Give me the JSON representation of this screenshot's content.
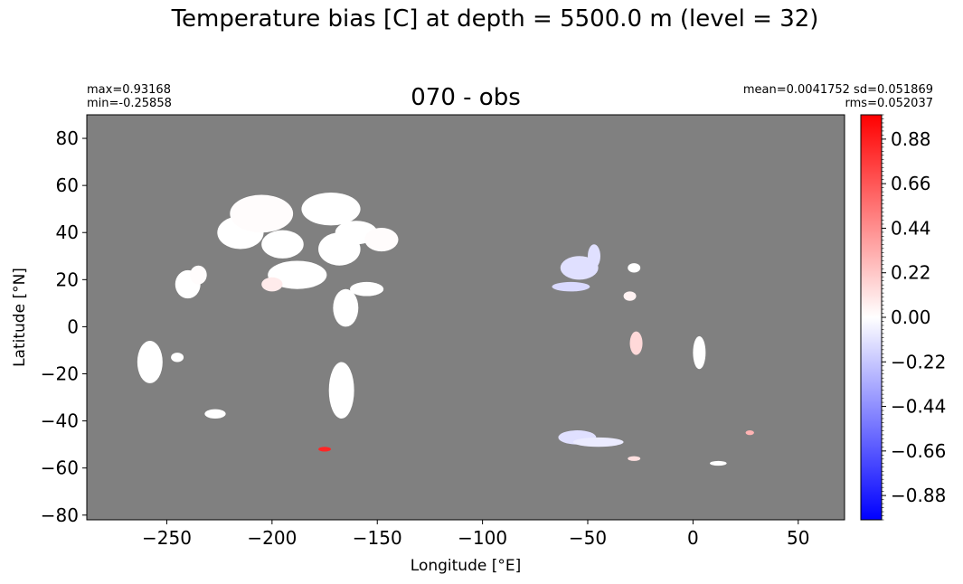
{
  "chart_data": {
    "type": "heatmap",
    "suptitle": "Temperature bias [C] at depth = 5500.0 m (level = 32)",
    "title": "070 - obs",
    "stats_left": [
      "max=0.93168",
      "min=-0.25858"
    ],
    "stats_right": [
      "mean=0.0041752 sd=0.051869",
      "rms=0.052037"
    ],
    "xlabel": "Longitude [°E]",
    "ylabel": "Latitude [°N]",
    "xlim": [
      -288,
      72
    ],
    "ylim": [
      -82,
      90
    ],
    "xticks": [
      -250,
      -200,
      -150,
      -100,
      -50,
      0,
      50
    ],
    "xtick_labels": [
      "−250",
      "−200",
      "−150",
      "−100",
      "−50",
      "0",
      "50"
    ],
    "yticks": [
      -80,
      -60,
      -40,
      -20,
      0,
      20,
      40,
      60,
      80
    ],
    "ytick_labels": [
      "−80",
      "−60",
      "−40",
      "−20",
      "0",
      "20",
      "40",
      "60",
      "80"
    ],
    "background_color": "#808080",
    "colorbar": {
      "vmin": -1.0,
      "vmax": 1.0,
      "colormap": "bwr",
      "ticks": [
        0.88,
        0.66,
        0.44,
        0.22,
        0.0,
        -0.22,
        -0.44,
        -0.66,
        -0.88
      ],
      "tick_labels": [
        "0.88",
        "0.66",
        "0.44",
        "0.22",
        "0.00",
        "−0.22",
        "−0.44",
        "−0.66",
        "−0.88"
      ]
    },
    "regions": [
      {
        "lon": -240,
        "lat": 18,
        "rx": 6,
        "ry": 6,
        "value": 0.0
      },
      {
        "lon": -235,
        "lat": 22,
        "rx": 4,
        "ry": 4,
        "value": 0.01
      },
      {
        "lon": -215,
        "lat": 40,
        "rx": 11,
        "ry": 7,
        "value": 0.0
      },
      {
        "lon": -205,
        "lat": 48,
        "rx": 15,
        "ry": 8,
        "value": 0.01
      },
      {
        "lon": -195,
        "lat": 35,
        "rx": 10,
        "ry": 6,
        "value": 0.0
      },
      {
        "lon": -188,
        "lat": 22,
        "rx": 14,
        "ry": 6,
        "value": 0.0
      },
      {
        "lon": -200,
        "lat": 18,
        "rx": 5,
        "ry": 3,
        "value": 0.08
      },
      {
        "lon": -172,
        "lat": 50,
        "rx": 14,
        "ry": 7,
        "value": 0.0
      },
      {
        "lon": -168,
        "lat": 33,
        "rx": 10,
        "ry": 7,
        "value": 0.0
      },
      {
        "lon": -160,
        "lat": 40,
        "rx": 10,
        "ry": 5,
        "value": 0.0
      },
      {
        "lon": -148,
        "lat": 37,
        "rx": 8,
        "ry": 5,
        "value": 0.01
      },
      {
        "lon": -165,
        "lat": 8,
        "rx": 6,
        "ry": 8,
        "value": 0.0
      },
      {
        "lon": -155,
        "lat": 16,
        "rx": 8,
        "ry": 3,
        "value": 0.0
      },
      {
        "lon": -258,
        "lat": -15,
        "rx": 6,
        "ry": 9,
        "value": 0.0
      },
      {
        "lon": -245,
        "lat": -13,
        "rx": 3,
        "ry": 2,
        "value": 0.0
      },
      {
        "lon": -167,
        "lat": -27,
        "rx": 6,
        "ry": 12,
        "value": 0.0
      },
      {
        "lon": -227,
        "lat": -37,
        "rx": 5,
        "ry": 2,
        "value": 0.0
      },
      {
        "lon": -175,
        "lat": -52,
        "rx": 3,
        "ry": 1,
        "value": 0.85
      },
      {
        "lon": -54,
        "lat": 25,
        "rx": 9,
        "ry": 5,
        "value": -0.12
      },
      {
        "lon": -47,
        "lat": 30,
        "rx": 3,
        "ry": 5,
        "value": -0.12
      },
      {
        "lon": -58,
        "lat": 17,
        "rx": 9,
        "ry": 2,
        "value": -0.15
      },
      {
        "lon": -28,
        "lat": 25,
        "rx": 3,
        "ry": 2,
        "value": 0.0
      },
      {
        "lon": -30,
        "lat": 13,
        "rx": 3,
        "ry": 2,
        "value": 0.05
      },
      {
        "lon": -27,
        "lat": -7,
        "rx": 3,
        "ry": 5,
        "value": 0.15
      },
      {
        "lon": 3,
        "lat": -11,
        "rx": 3,
        "ry": 7,
        "value": 0.0
      },
      {
        "lon": -55,
        "lat": -47,
        "rx": 9,
        "ry": 3,
        "value": -0.12
      },
      {
        "lon": -45,
        "lat": -49,
        "rx": 12,
        "ry": 2,
        "value": -0.08
      },
      {
        "lon": -28,
        "lat": -56,
        "rx": 3,
        "ry": 1,
        "value": 0.12
      },
      {
        "lon": 12,
        "lat": -58,
        "rx": 4,
        "ry": 1,
        "value": 0.0
      },
      {
        "lon": 27,
        "lat": -45,
        "rx": 2,
        "ry": 1,
        "value": 0.3
      }
    ]
  }
}
